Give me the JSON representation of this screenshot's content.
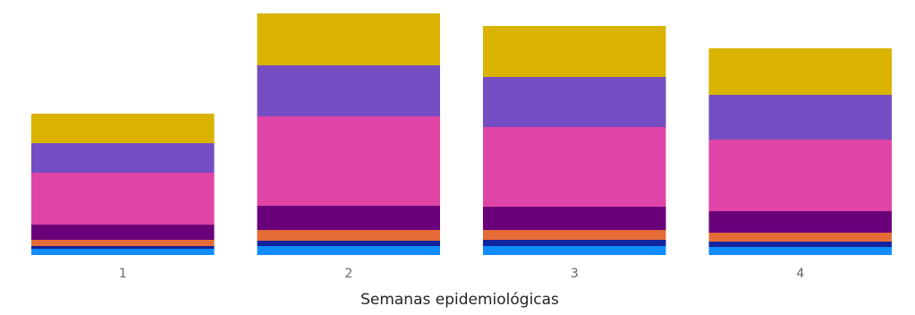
{
  "chart_data": {
    "type": "bar",
    "stacked": true,
    "xlabel": "Semanas epidemiológicas",
    "ylabel": "",
    "categories": [
      "1",
      "2",
      "3",
      "4"
    ],
    "ylim": [
      0,
      274
    ],
    "series": [
      {
        "color": "#118DFF",
        "values": [
          7,
          10,
          10,
          9
        ]
      },
      {
        "color": "#12239E",
        "values": [
          3,
          6,
          7,
          6
        ]
      },
      {
        "color": "#E66C37",
        "values": [
          7,
          12,
          11,
          10
        ]
      },
      {
        "color": "#6B007B",
        "values": [
          17,
          27,
          26,
          24
        ]
      },
      {
        "color": "#E044A7",
        "values": [
          58,
          100,
          89,
          80
        ]
      },
      {
        "color": "#744EC2",
        "values": [
          33,
          57,
          56,
          50
        ]
      },
      {
        "color": "#D9B300",
        "values": [
          33,
          58,
          57,
          52
        ]
      }
    ],
    "grid": false,
    "legend": "none"
  }
}
